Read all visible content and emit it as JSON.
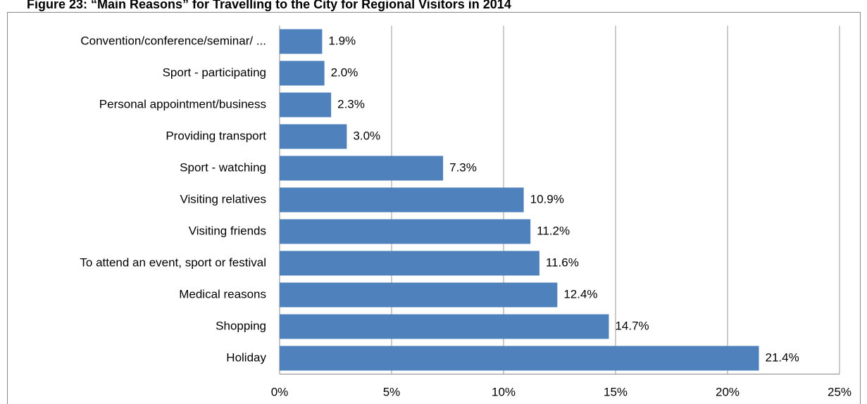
{
  "chart_data": {
    "type": "bar",
    "orientation": "horizontal",
    "title": "Figure 23: “Main Reasons” for Travelling to the City for Regional Visitors in 2014",
    "categories": [
      "Convention/conference/seminar/ ...",
      "Sport - participating",
      "Personal appointment/business",
      "Providing transport",
      "Sport - watching",
      "Visiting relatives",
      "Visiting friends",
      "To attend an event, sport or festival",
      "Medical reasons",
      "Shopping",
      "Holiday"
    ],
    "values": [
      1.9,
      2.0,
      2.3,
      3.0,
      7.3,
      10.9,
      11.2,
      11.6,
      12.4,
      14.7,
      21.4
    ],
    "value_labels": [
      "1.9%",
      "2.0%",
      "2.3%",
      "3.0%",
      "7.3%",
      "10.9%",
      "11.2%",
      "11.6%",
      "12.4%",
      "14.7%",
      "21.4%"
    ],
    "color": "#4f81bd",
    "xlim": [
      0,
      25
    ],
    "xticks": [
      {
        "value": 0,
        "label": "0%"
      },
      {
        "value": 5,
        "label": "5%"
      },
      {
        "value": 10,
        "label": "10%"
      },
      {
        "value": 15,
        "label": "15%"
      },
      {
        "value": 20,
        "label": "20%"
      },
      {
        "value": 25,
        "label": "25%"
      }
    ],
    "grid": true
  }
}
